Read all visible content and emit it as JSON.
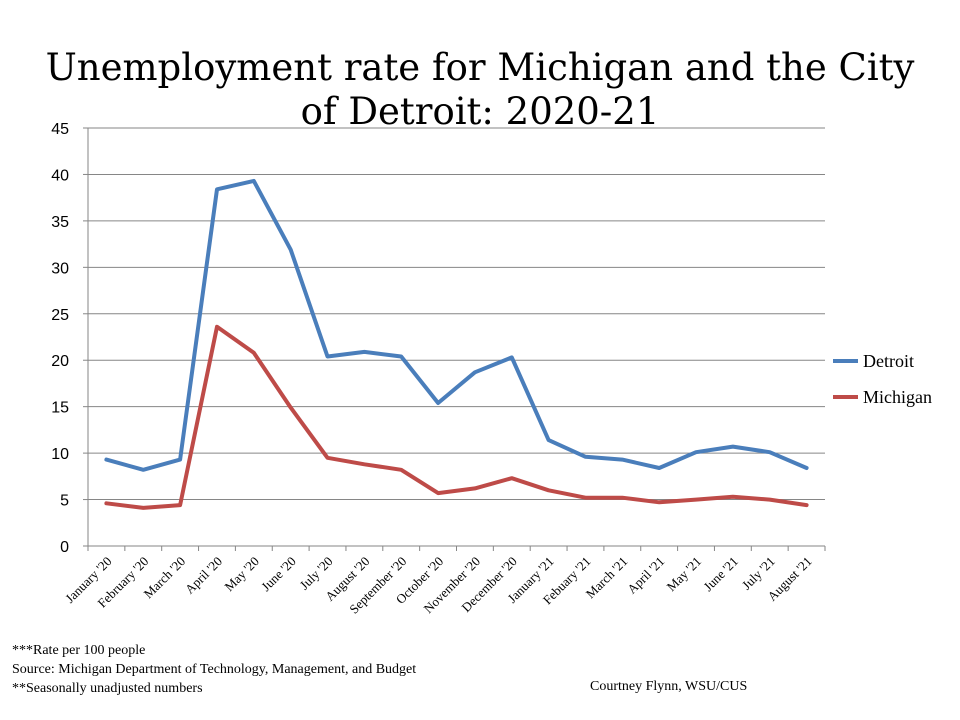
{
  "title": "Unemployment rate for Michigan and the City of Detroit: 2020-21",
  "footnotes": [
    "***Rate per 100 people",
    "Source: Michigan Department of Technology, Management, and Budget",
    "**Seasonally unadjusted numbers"
  ],
  "credit": "Courtney Flynn, WSU/CUS",
  "colors": {
    "detroit": "#4a7ebb",
    "michigan": "#be4b48",
    "grid": "#868686"
  },
  "chart_data": {
    "type": "line",
    "title": "Unemployment rate for Michigan and the City of Detroit: 2020-21",
    "categories": [
      "January '20",
      "February '20",
      "March '20",
      "April '20",
      "May '20",
      "June '20",
      "July '20",
      "August '20",
      "September '20",
      "October '20",
      "November '20",
      "December '20",
      "January '21",
      "Febuary '21",
      "March '21",
      "April '21",
      "May '21",
      "June '21",
      "July '21",
      "August '21"
    ],
    "series": [
      {
        "name": "Detroit",
        "values": [
          9.3,
          8.2,
          9.3,
          38.4,
          39.3,
          31.9,
          20.4,
          20.9,
          20.4,
          15.4,
          18.7,
          20.3,
          11.4,
          9.6,
          9.3,
          8.4,
          10.1,
          10.7,
          10.1,
          8.4
        ]
      },
      {
        "name": "Michigan",
        "values": [
          4.6,
          4.1,
          4.4,
          23.6,
          20.8,
          14.9,
          9.5,
          8.8,
          8.2,
          5.7,
          6.2,
          7.3,
          6.0,
          5.2,
          5.2,
          4.7,
          5.0,
          5.3,
          5.0,
          4.4
        ]
      }
    ],
    "ylim": [
      0,
      45
    ],
    "yticks": [
      0,
      5,
      10,
      15,
      20,
      25,
      30,
      35,
      40,
      45
    ],
    "grid": true,
    "legend": "right"
  }
}
